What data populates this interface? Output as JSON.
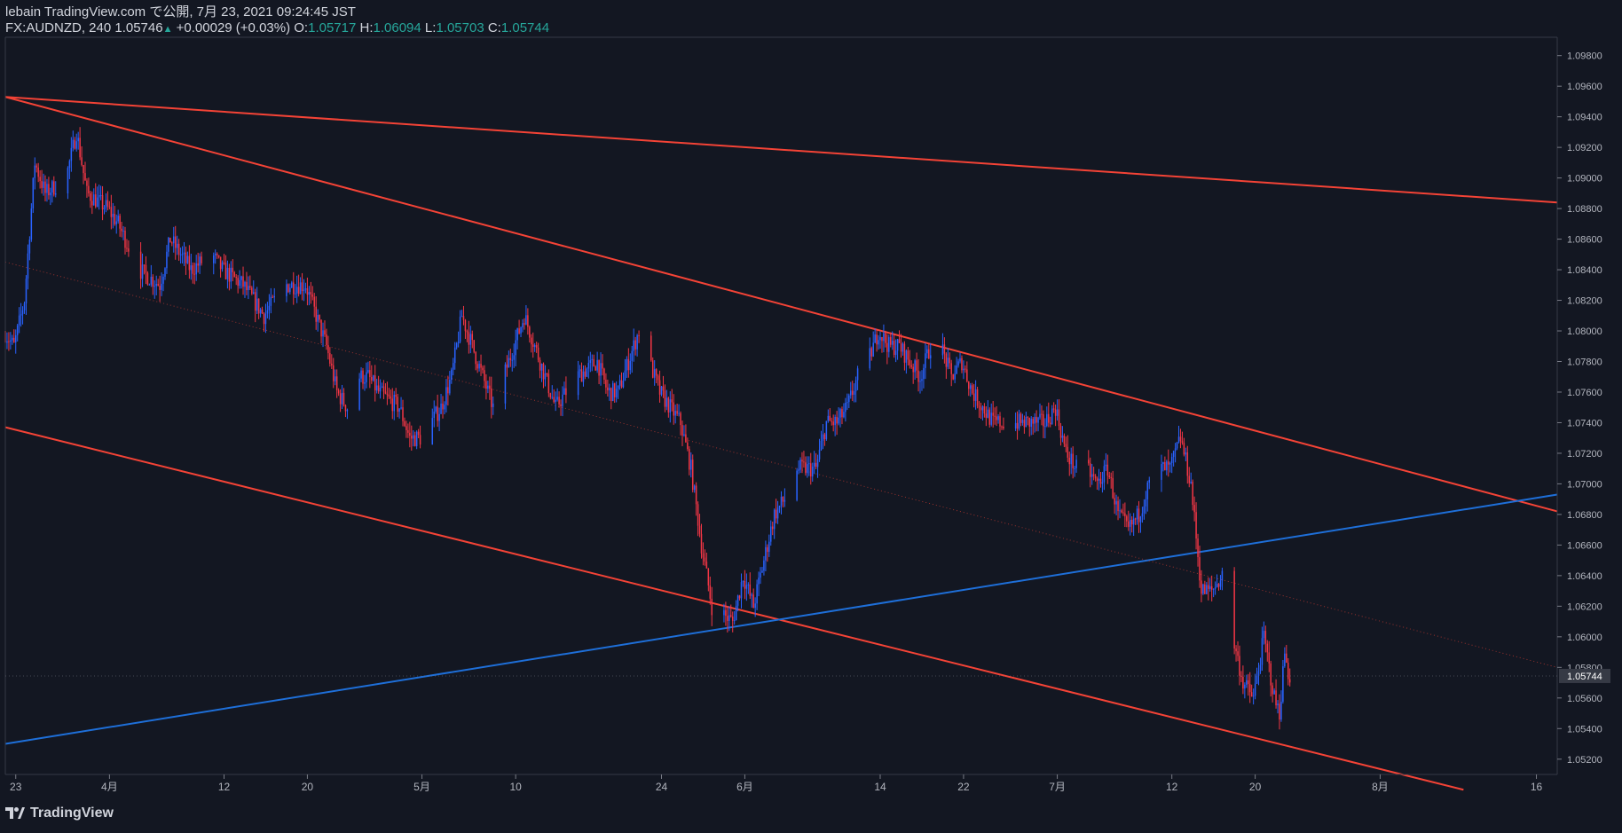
{
  "header": {
    "line1": "lebain TradingView.com で公開, 7月 23, 2021 09:24:45 JST",
    "symbol": "FX:AUDNZD, 240 1.05746",
    "change": "+0.00029 (+0.03%)",
    "o_label": "O:",
    "o_value": "1.05717",
    "h_label": "H:",
    "h_value": "1.06094",
    "l_label": "L:",
    "l_value": "1.05703",
    "c_label": "C:",
    "c_value": "1.05744"
  },
  "footer": {
    "brand": "TradingView"
  },
  "colors": {
    "background": "#131722",
    "bull": "#2962ff",
    "bear": "#f23645",
    "trend_red": "#f44336",
    "trend_blue": "#1e6fd9",
    "axis": "#787b86"
  },
  "chart_data": {
    "type": "candlestick",
    "symbol": "FX:AUDNZD",
    "interval": "240",
    "ylim": [
      1.051,
      1.0992
    ],
    "y_ticks": [
      1.052,
      1.054,
      1.056,
      1.058,
      1.06,
      1.062,
      1.064,
      1.066,
      1.068,
      1.07,
      1.072,
      1.074,
      1.076,
      1.078,
      1.08,
      1.082,
      1.084,
      1.086,
      1.088,
      1.09,
      1.092,
      1.094,
      1.096,
      1.098
    ],
    "y_tick_labels": [
      "1.05200",
      "1.05400",
      "1.05600",
      "1.05800",
      "1.06000",
      "1.06200",
      "1.06400",
      "1.06600",
      "1.06800",
      "1.07000",
      "1.07200",
      "1.07400",
      "1.07600",
      "1.07800",
      "1.08000",
      "1.08200",
      "1.08400",
      "1.08600",
      "1.08800",
      "1.09000",
      "1.09200",
      "1.09400",
      "1.09600",
      "1.09800"
    ],
    "x_range": [
      "2021-03-22",
      "2021-08-18"
    ],
    "x_ticks": [
      {
        "date": "2021-03-23",
        "label": "23"
      },
      {
        "date": "2021-04-01",
        "label": "4月"
      },
      {
        "date": "2021-04-12",
        "label": "12"
      },
      {
        "date": "2021-04-20",
        "label": "20"
      },
      {
        "date": "2021-05-01",
        "label": "5月"
      },
      {
        "date": "2021-05-10",
        "label": "10"
      },
      {
        "date": "2021-05-24",
        "label": "24"
      },
      {
        "date": "2021-06-01",
        "label": "6月"
      },
      {
        "date": "2021-06-14",
        "label": "14"
      },
      {
        "date": "2021-06-22",
        "label": "22"
      },
      {
        "date": "2021-07-01",
        "label": "7月"
      },
      {
        "date": "2021-07-12",
        "label": "12"
      },
      {
        "date": "2021-07-20",
        "label": "20"
      },
      {
        "date": "2021-08-01",
        "label": "8月"
      },
      {
        "date": "2021-08-16",
        "label": "16"
      }
    ],
    "last_price": 1.05744,
    "last_price_label": "1.05744",
    "price_path": [
      [
        "2021-03-22",
        1.08
      ],
      [
        "2021-03-23",
        1.079
      ],
      [
        "2021-03-24",
        1.082
      ],
      [
        "2021-03-25",
        1.091
      ],
      [
        "2021-03-26",
        1.089
      ],
      [
        "2021-03-28",
        1.09
      ],
      [
        "2021-03-29",
        1.093
      ],
      [
        "2021-03-30",
        1.089
      ],
      [
        "2021-04-01",
        1.088
      ],
      [
        "2021-04-02",
        1.087
      ],
      [
        "2021-04-04",
        1.084
      ],
      [
        "2021-04-06",
        1.083
      ],
      [
        "2021-04-07",
        1.086
      ],
      [
        "2021-04-08",
        1.085
      ],
      [
        "2021-04-09",
        1.084
      ],
      [
        "2021-04-11",
        1.085
      ],
      [
        "2021-04-12",
        1.084
      ],
      [
        "2021-04-14",
        1.083
      ],
      [
        "2021-04-16",
        1.081
      ],
      [
        "2021-04-18",
        1.083
      ],
      [
        "2021-04-20",
        1.083
      ],
      [
        "2021-04-21",
        1.081
      ],
      [
        "2021-04-22",
        1.079
      ],
      [
        "2021-04-23",
        1.076
      ],
      [
        "2021-04-24",
        1.075
      ],
      [
        "2021-04-25",
        1.077
      ],
      [
        "2021-04-26",
        1.077
      ],
      [
        "2021-04-27",
        1.076
      ],
      [
        "2021-04-29",
        1.075
      ],
      [
        "2021-04-30",
        1.073
      ],
      [
        "2021-05-01",
        1.073
      ],
      [
        "2021-05-03",
        1.075
      ],
      [
        "2021-05-04",
        1.077
      ],
      [
        "2021-05-05",
        1.081
      ],
      [
        "2021-05-07",
        1.077
      ],
      [
        "2021-05-08",
        1.075
      ],
      [
        "2021-05-10",
        1.079
      ],
      [
        "2021-05-11",
        1.081
      ],
      [
        "2021-05-13",
        1.077
      ],
      [
        "2021-05-14",
        1.075
      ],
      [
        "2021-05-16",
        1.077
      ],
      [
        "2021-05-18",
        1.078
      ],
      [
        "2021-05-19",
        1.076
      ],
      [
        "2021-05-20",
        1.076
      ],
      [
        "2021-05-21",
        1.078
      ],
      [
        "2021-05-22",
        1.08
      ],
      [
        "2021-05-24",
        1.076
      ],
      [
        "2021-05-26",
        1.074
      ],
      [
        "2021-05-27",
        1.071
      ],
      [
        "2021-05-28",
        1.066
      ],
      [
        "2021-05-29",
        1.062
      ],
      [
        "2021-05-31",
        1.061
      ],
      [
        "2021-06-01",
        1.064
      ],
      [
        "2021-06-02",
        1.062
      ],
      [
        "2021-06-03",
        1.065
      ],
      [
        "2021-06-04",
        1.068
      ],
      [
        "2021-06-05",
        1.069
      ],
      [
        "2021-06-06",
        1.071
      ],
      [
        "2021-06-08",
        1.071
      ],
      [
        "2021-06-09",
        1.074
      ],
      [
        "2021-06-10",
        1.074
      ],
      [
        "2021-06-11",
        1.075
      ],
      [
        "2021-06-12",
        1.077
      ],
      [
        "2021-06-13",
        1.078
      ],
      [
        "2021-06-14",
        1.08
      ],
      [
        "2021-06-15",
        1.079
      ],
      [
        "2021-06-16",
        1.079
      ],
      [
        "2021-06-17",
        1.078
      ],
      [
        "2021-06-18",
        1.077
      ],
      [
        "2021-06-19",
        1.079
      ],
      [
        "2021-06-20",
        1.079
      ],
      [
        "2021-06-21",
        1.077
      ],
      [
        "2021-06-22",
        1.078
      ],
      [
        "2021-06-23",
        1.076
      ],
      [
        "2021-06-24",
        1.075
      ],
      [
        "2021-06-25",
        1.074
      ],
      [
        "2021-06-26",
        1.074
      ],
      [
        "2021-06-28",
        1.074
      ],
      [
        "2021-06-29",
        1.074
      ],
      [
        "2021-06-30",
        1.074
      ],
      [
        "2021-07-01",
        1.075
      ],
      [
        "2021-07-02",
        1.072
      ],
      [
        "2021-07-03",
        1.071
      ],
      [
        "2021-07-04",
        1.071
      ],
      [
        "2021-07-05",
        1.07
      ],
      [
        "2021-07-06",
        1.071
      ],
      [
        "2021-07-07",
        1.068
      ],
      [
        "2021-07-08",
        1.067
      ],
      [
        "2021-07-09",
        1.068
      ],
      [
        "2021-07-10",
        1.07
      ],
      [
        "2021-07-11",
        1.071
      ],
      [
        "2021-07-12",
        1.071
      ],
      [
        "2021-07-13",
        1.073
      ],
      [
        "2021-07-14",
        1.07
      ],
      [
        "2021-07-15",
        1.063
      ],
      [
        "2021-07-16",
        1.063
      ],
      [
        "2021-07-17",
        1.064
      ],
      [
        "2021-07-18",
        1.06
      ],
      [
        "2021-07-19",
        1.057
      ],
      [
        "2021-07-20",
        1.056
      ],
      [
        "2021-07-20T12:00",
        1.058
      ],
      [
        "2021-07-21",
        1.06
      ],
      [
        "2021-07-22",
        1.056
      ],
      [
        "2021-07-22T12:00",
        1.055
      ],
      [
        "2021-07-23",
        1.059
      ],
      [
        "2021-07-23T09:00",
        1.05744
      ]
    ],
    "trendlines": [
      {
        "color": "red",
        "from": [
          "2021-03-22",
          1.0953
        ],
        "to": [
          "2021-08-18",
          1.0884
        ]
      },
      {
        "color": "red",
        "from": [
          "2021-03-22",
          1.0953
        ],
        "to": [
          "2021-08-18",
          1.0682
        ]
      },
      {
        "color": "red",
        "from": [
          "2021-03-22",
          1.0737
        ],
        "to": [
          "2021-08-09",
          1.05
        ]
      },
      {
        "color": "blue",
        "from": [
          "2021-03-22",
          1.053
        ],
        "to": [
          "2021-08-18",
          1.0693
        ]
      },
      {
        "color": "red",
        "style": "dotted",
        "from": [
          "2021-03-22",
          1.0845
        ],
        "to": [
          "2021-08-18",
          1.058
        ]
      }
    ]
  }
}
